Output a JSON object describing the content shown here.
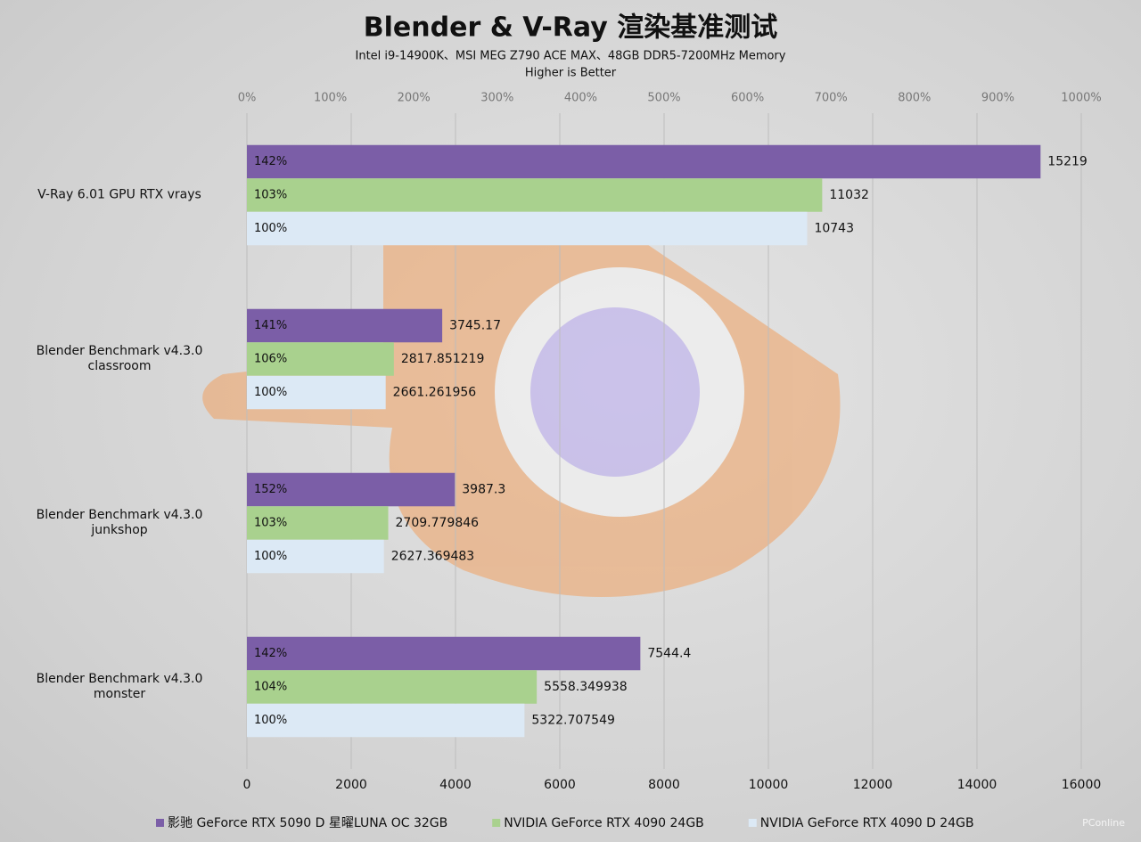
{
  "chart_data": {
    "type": "hbar",
    "title": "Blender & V-Ray 渲染基准测试",
    "subtitle": "Intel i9-14900K、MSI MEG Z790 ACE MAX、48GB DDR5-7200MHz Memory",
    "note": "Higher is Better",
    "watermark": "PConline",
    "categories": [
      "V-Ray 6.01 GPU RTX vrays",
      "Blender Benchmark v4.3.0\nclassroom",
      "Blender Benchmark v4.3.0\njunkshop",
      "Blender Benchmark v4.3.0\nmonster"
    ],
    "series": [
      {
        "name": "影驰 GeForce RTX 5090 D 星曜LUNA OC 32GB",
        "color": "#7b5ea7",
        "values": [
          15219,
          3745.17,
          3987.3,
          7544.4
        ],
        "percent_labels": [
          "142%",
          "141%",
          "152%",
          "142%"
        ]
      },
      {
        "name": "NVIDIA GeForce RTX 4090 24GB",
        "color": "#a9d18e",
        "values": [
          11032,
          2817.851219,
          2709.779846,
          5558.349938
        ],
        "percent_labels": [
          "103%",
          "106%",
          "103%",
          "104%"
        ]
      },
      {
        "name": "NVIDIA GeForce RTX 4090 D 24GB",
        "color": "#dce9f5",
        "values": [
          10743,
          2661.261956,
          2627.369483,
          5322.707549
        ],
        "percent_labels": [
          "100%",
          "100%",
          "100%",
          "100%"
        ]
      }
    ],
    "xlim": [
      0,
      16000
    ],
    "xticks": [
      0,
      2000,
      4000,
      6000,
      8000,
      10000,
      12000,
      14000,
      16000
    ],
    "x2lim": [
      0,
      1000
    ],
    "x2ticks": [
      {
        "value": 0,
        "label": "0%"
      },
      {
        "value": 100,
        "label": "100%"
      },
      {
        "value": 200,
        "label": "200%"
      },
      {
        "value": 300,
        "label": "300%"
      },
      {
        "value": 400,
        "label": "400%"
      },
      {
        "value": 500,
        "label": "500%"
      },
      {
        "value": 600,
        "label": "600%"
      },
      {
        "value": 700,
        "label": "700%"
      },
      {
        "value": 800,
        "label": "800%"
      },
      {
        "value": 900,
        "label": "900%"
      },
      {
        "value": 1000,
        "label": "1000%"
      }
    ],
    "grid": true
  }
}
